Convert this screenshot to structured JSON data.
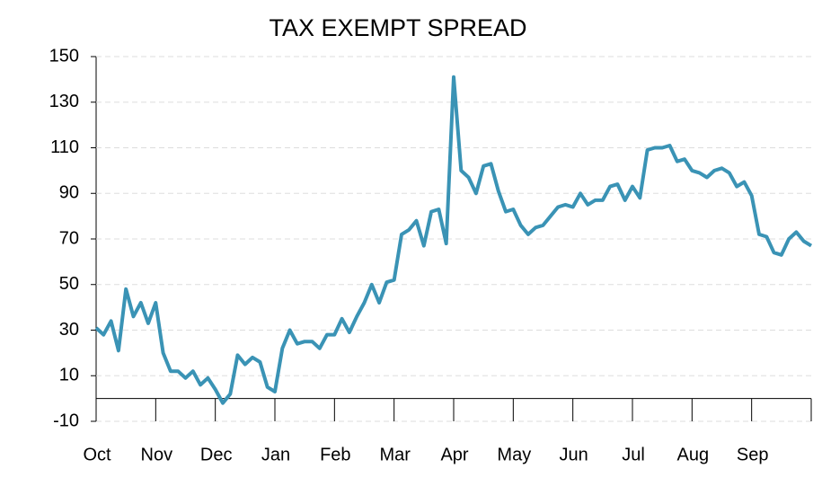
{
  "chart_data": {
    "type": "line",
    "title": "TAX EXEMPT SPREAD",
    "categories": [
      "Oct",
      null,
      null,
      null,
      null,
      null,
      null,
      null,
      "Nov",
      null,
      null,
      null,
      null,
      null,
      null,
      null,
      "Dec",
      null,
      null,
      null,
      null,
      null,
      null,
      null,
      "Jan",
      null,
      null,
      null,
      null,
      null,
      null,
      null,
      "Feb",
      null,
      null,
      null,
      null,
      null,
      null,
      null,
      "Mar",
      null,
      null,
      null,
      null,
      null,
      null,
      null,
      "Apr",
      null,
      null,
      null,
      null,
      null,
      null,
      null,
      "May",
      null,
      null,
      null,
      null,
      null,
      null,
      null,
      "Jun",
      null,
      null,
      null,
      null,
      null,
      null,
      null,
      "Jul",
      null,
      null,
      null,
      null,
      null,
      null,
      null,
      "Aug",
      null,
      null,
      null,
      null,
      null,
      null,
      null,
      "Sep",
      null,
      null,
      null,
      null,
      null,
      null,
      null,
      null
    ],
    "series": [
      {
        "name": "Tax Exempt Spread",
        "color": "#3a93b5",
        "values": [
          31,
          28,
          34,
          21,
          48,
          36,
          42,
          33,
          42,
          20,
          12,
          12,
          9,
          12,
          6,
          9,
          4,
          -2,
          2,
          19,
          15,
          18,
          16,
          5,
          3,
          22,
          30,
          24,
          25,
          25,
          22,
          28,
          28,
          35,
          29,
          36,
          42,
          50,
          42,
          51,
          52,
          72,
          74,
          78,
          67,
          82,
          83,
          68,
          141,
          100,
          97,
          90,
          102,
          103,
          91,
          82,
          83,
          76,
          72,
          75,
          76,
          80,
          84,
          85,
          84,
          90,
          85,
          87,
          87,
          93,
          94,
          87,
          93,
          88,
          109,
          110,
          110,
          111,
          104,
          105,
          100,
          99,
          97,
          100,
          101,
          99,
          93,
          95,
          89,
          72,
          71,
          64,
          63,
          70,
          73,
          69,
          67
        ]
      }
    ],
    "ylim": [
      -10,
      150
    ],
    "yticks": [
      -10,
      10,
      30,
      50,
      70,
      90,
      110,
      130,
      150
    ],
    "grid": true
  }
}
